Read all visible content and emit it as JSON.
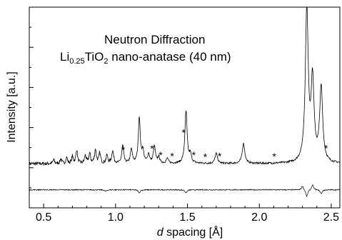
{
  "chart_data": {
    "type": "line",
    "title": "Neutron Diffraction",
    "subtitle_parts": {
      "li": "Li",
      "li_sub": "0.25",
      "ti": "TiO",
      "o_sub": "2",
      "rest": " nano-anatase (40 nm)"
    },
    "xlabel_italic": "d",
    "xlabel_rest": " spacing [Å]",
    "ylabel": "Intensity [a.u.]",
    "xlim": [
      0.4,
      2.56
    ],
    "ylim": [
      0,
      1
    ],
    "x_ticks": [
      0.5,
      1.0,
      1.5,
      2.0,
      2.5
    ],
    "x_tick_labels": [
      "0.5",
      "1.0",
      "1.5",
      "2.0",
      "2.5"
    ],
    "y_ticks": [
      0.2,
      0.4,
      0.6,
      0.8,
      1.0
    ],
    "y_tick_labels": [],
    "grid": false,
    "baseline": 0.22,
    "noise_amplitude": 0.006,
    "peaks": [
      {
        "d": 0.57,
        "h": 0.02
      },
      {
        "d": 0.62,
        "h": 0.025
      },
      {
        "d": 0.66,
        "h": 0.03
      },
      {
        "d": 0.7,
        "h": 0.035
      },
      {
        "d": 0.73,
        "h": 0.07
      },
      {
        "d": 0.79,
        "h": 0.04
      },
      {
        "d": 0.82,
        "h": 0.05
      },
      {
        "d": 0.86,
        "h": 0.07
      },
      {
        "d": 0.89,
        "h": 0.05
      },
      {
        "d": 0.94,
        "h": 0.04
      },
      {
        "d": 0.98,
        "h": 0.065
      },
      {
        "d": 1.05,
        "h": 0.09
      },
      {
        "d": 1.11,
        "h": 0.07
      },
      {
        "d": 1.165,
        "h": 0.23
      },
      {
        "d": 1.19,
        "h": 0.06
      },
      {
        "d": 1.23,
        "h": 0.045
      },
      {
        "d": 1.27,
        "h": 0.085
      },
      {
        "d": 1.3,
        "h": 0.03
      },
      {
        "d": 1.36,
        "h": 0.025
      },
      {
        "d": 1.49,
        "h": 0.26
      },
      {
        "d": 1.52,
        "h": 0.04
      },
      {
        "d": 1.7,
        "h": 0.05
      },
      {
        "d": 1.89,
        "h": 0.1
      },
      {
        "d": 2.33,
        "h": 0.76
      },
      {
        "d": 2.37,
        "h": 0.4
      },
      {
        "d": 2.43,
        "h": 0.37
      }
    ],
    "asterisk_positions": [
      1.06,
      1.26,
      1.32,
      1.4,
      1.48,
      1.55,
      1.63,
      1.73,
      2.11,
      2.47
    ],
    "asterisk_label": "*",
    "difference_curve": {
      "offset": 0.09,
      "features": [
        {
          "d": 0.93,
          "v": -0.008
        },
        {
          "d": 1.165,
          "v": -0.015
        },
        {
          "d": 1.49,
          "v": -0.015
        },
        {
          "d": 2.3,
          "v": 0.02
        },
        {
          "d": 2.33,
          "v": -0.035
        },
        {
          "d": 2.37,
          "v": 0.025
        },
        {
          "d": 2.43,
          "v": -0.02
        }
      ]
    }
  }
}
